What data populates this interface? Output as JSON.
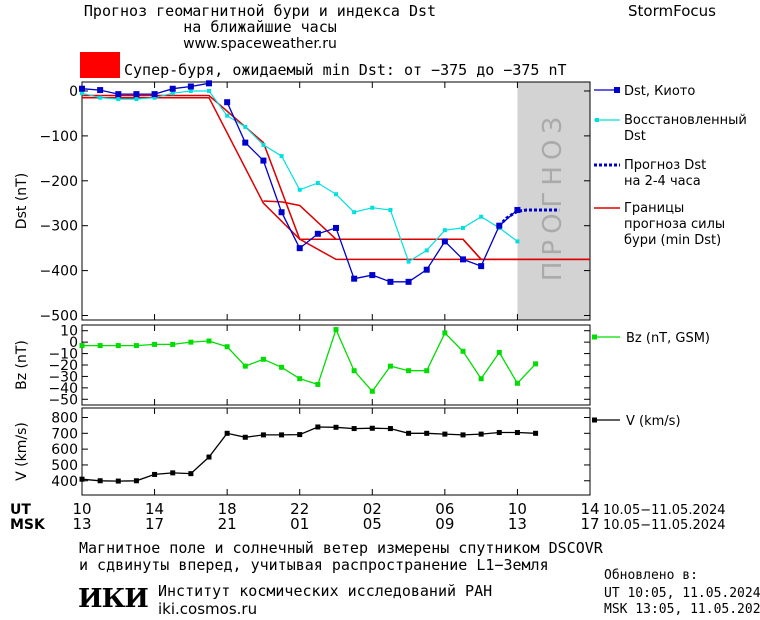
{
  "header": {
    "title_line1": "Прогноз геомагнитной бури и индекса Dst",
    "title_line2": "на ближайшие часы",
    "site": "www.spaceweather.ru",
    "brand": "StormFocus"
  },
  "storm_notice": {
    "text": "Супер-буря, ожидаемый min Dst: от −375 до −375 nT",
    "color": "#ff0000"
  },
  "chart_data": [
    {
      "type": "line",
      "ylabel": "Dst (nT)",
      "ylim": [
        -510,
        20
      ],
      "yticks": [
        0,
        -100,
        -200,
        -300,
        -400,
        -500
      ],
      "ytick_labels": [
        "0",
        "−100",
        "−200",
        "−300",
        "−400",
        "−500"
      ],
      "x_hours": [
        10,
        34
      ],
      "forecast_band": {
        "x_start": 10,
        "x_end": 14,
        "label": "ПРОГНОЗ",
        "color": "#d3d3d3"
      },
      "series": [
        {
          "name": "Dst, Киото",
          "color": "#0000cc",
          "marker": "square",
          "x": [
            10,
            11,
            12,
            13,
            14,
            15,
            16,
            17,
            18,
            19,
            20,
            21,
            22,
            23,
            24,
            25,
            26,
            27,
            28,
            29,
            30,
            31,
            32,
            33,
            34
          ],
          "y": [
            5,
            2,
            -7,
            -7,
            -7,
            5,
            10,
            17,
            -25,
            -115,
            -155,
            -270,
            -350,
            -318,
            -305,
            -418,
            -410,
            -425,
            -425,
            -398,
            -335,
            -375,
            -390,
            -300,
            -265
          ],
          "segments": [
            [
              0,
              7
            ],
            [
              8,
              32
            ]
          ]
        },
        {
          "name": "Восстановленный Dst",
          "color": "#00e0e0",
          "marker": "square-small",
          "x": [
            10,
            11,
            12,
            13,
            14,
            15,
            16,
            17,
            18,
            19,
            20,
            21,
            22,
            23,
            24,
            25,
            26,
            27,
            28,
            29,
            30,
            31,
            32,
            33,
            34
          ],
          "y": [
            -5,
            -15,
            -18,
            -18,
            -15,
            -5,
            0,
            0,
            -55,
            -80,
            -120,
            -145,
            -220,
            -205,
            -230,
            -270,
            -260,
            -265,
            -380,
            -355,
            -310,
            -305,
            -280,
            -305,
            -335
          ],
          "segments": [
            [
              0,
              24
            ]
          ]
        },
        {
          "name": "Прогноз Dst на 2-4 часа",
          "name_line1": "Прогноз Dst",
          "name_line2": "на 2-4 часа",
          "color": "#0000cc",
          "dash": true,
          "x": [
            33,
            33.4,
            33.7,
            34,
            34.5,
            35,
            35.5,
            36.3
          ],
          "y": [
            -300,
            -283,
            -275,
            -268,
            -265,
            -265,
            -265,
            -265
          ]
        },
        {
          "name": "Границы прогноза силы бури (min Dst)",
          "name_line1": "Границы",
          "name_line2": "прогноза силы",
          "name_line3": "бури (min Dst)",
          "color": "#dd0000",
          "upper": {
            "x": [
              10,
              17,
              20,
              22,
              31,
              32,
              33,
              38
            ],
            "y": [
              -10,
              -10,
              -115,
              -330,
              -330,
              -375,
              -375,
              -375
            ]
          },
          "lower": {
            "x": [
              10,
              17,
              20,
              22,
              24,
              31,
              33,
              38
            ],
            "y": [
              -15,
              -15,
              -250,
              -330,
              -375,
              -375,
              -375,
              -375
            ]
          },
          "mid": {
            "x": [
              20,
              21,
              22,
              24,
              26,
              31,
              32
            ],
            "y": [
              -245,
              -247,
              -255,
              -330,
              -330,
              -330,
              -375
            ]
          }
        }
      ]
    },
    {
      "type": "line",
      "ylabel": "Bz (nT)",
      "ylim": [
        -55,
        15
      ],
      "yticks": [
        10,
        0,
        -10,
        -20,
        -30,
        -40,
        -50
      ],
      "ytick_labels": [
        "10",
        "0",
        "−10",
        "−20",
        "−30",
        "−40",
        "−50"
      ],
      "series": [
        {
          "name": "Bz (nT, GSM)",
          "color": "#00dd00",
          "x": [
            10,
            11,
            12,
            13,
            14,
            15,
            16,
            17,
            18,
            19,
            20,
            21,
            22,
            23,
            24,
            25,
            26,
            27,
            28,
            29,
            30,
            31,
            32,
            33,
            34
          ],
          "y": [
            -3,
            -3,
            -3,
            -3,
            -2,
            -2,
            0,
            1,
            -4,
            -21,
            -15,
            -22,
            -32,
            -37,
            11,
            -25,
            -43,
            -21,
            -25,
            -25,
            8,
            -8,
            -32,
            -9,
            -36
          ]
        }
      ],
      "extra_point": {
        "x": 35,
        "y": -19
      }
    },
    {
      "type": "line",
      "ylabel": "V (km/s)",
      "ylim": [
        310,
        860
      ],
      "yticks": [
        400,
        500,
        600,
        700,
        800
      ],
      "ytick_labels": [
        "400",
        "500",
        "600",
        "700",
        "800"
      ],
      "series": [
        {
          "name": "V (km/s)",
          "color": "#000000",
          "x": [
            10,
            11,
            12,
            13,
            14,
            15,
            16,
            17,
            18,
            19,
            20,
            21,
            22,
            23,
            24,
            25,
            26,
            27,
            28,
            29,
            30,
            31,
            32,
            33,
            34,
            35
          ],
          "y": [
            410,
            400,
            398,
            400,
            440,
            450,
            445,
            550,
            700,
            675,
            690,
            690,
            692,
            740,
            738,
            730,
            732,
            730,
            700,
            700,
            695,
            690,
            695,
            705,
            705,
            700
          ]
        }
      ]
    }
  ],
  "x_axis": {
    "range_hours": [
      10,
      38
    ],
    "tick_hours": [
      10,
      14,
      18,
      22,
      26,
      30,
      34,
      38
    ],
    "ut_labels": [
      "10",
      "14",
      "18",
      "22",
      "02",
      "06",
      "10",
      "14"
    ],
    "msk_labels": [
      "13",
      "17",
      "21",
      "01",
      "05",
      "09",
      "13",
      "17"
    ],
    "ut_row_label": "UT",
    "msk_row_label": "MSK",
    "ut_date_range": "10.05−11.05.2024",
    "msk_date_range": "10.05−11.05.2024"
  },
  "footer": {
    "line1": "Магнитное поле и солнечный ветер измерены спутником DSCOVR",
    "line2": "и сдвинуты вперед, учитывая распространение L1−Земля",
    "logo": "ИКИ",
    "institute": "Институт космических исследований РАН",
    "institute_url": "iki.cosmos.ru",
    "updated_title": "Обновлено в:",
    "updated_ut": "UT   10:05, 11.05.2024",
    "updated_msk": "MSK 13:05, 11.05.2024"
  }
}
